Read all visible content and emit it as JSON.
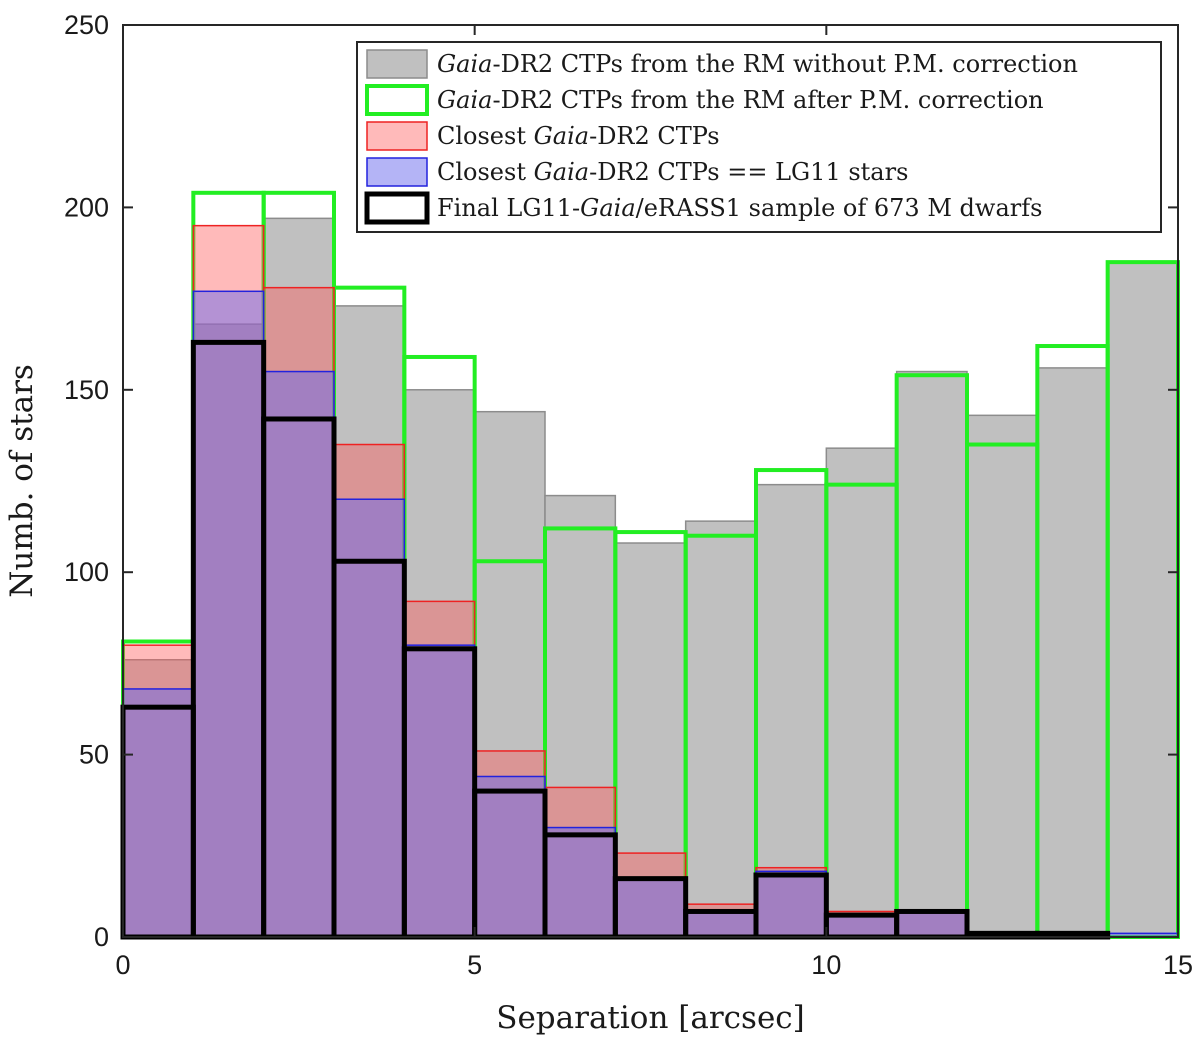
{
  "chart_data": {
    "type": "histogram",
    "title": "",
    "xlabel": "Separation [arcsec]",
    "ylabel": "Numb. of stars",
    "xlim": [
      0,
      15
    ],
    "ylim": [
      0,
      250
    ],
    "xticks": [
      0,
      5,
      10,
      15
    ],
    "yticks": [
      0,
      50,
      100,
      150,
      200,
      250
    ],
    "grid": false,
    "legend_position": "top-right",
    "bin_edges": [
      0,
      1,
      2,
      3,
      4,
      5,
      6,
      7,
      8,
      9,
      10,
      11,
      12,
      13,
      14,
      15
    ],
    "series": [
      {
        "id": "gray",
        "name": "Gaia-DR2 CTPs from the RM without P.M. correction",
        "style": "filled",
        "fill": "#bdbdbd",
        "fill_opacity": 0.95,
        "stroke": "#8c8c8c",
        "stroke_width": 1.5,
        "values": [
          76,
          168,
          197,
          173,
          150,
          144,
          121,
          108,
          114,
          124,
          134,
          155,
          143,
          156,
          185
        ]
      },
      {
        "id": "green",
        "name": "Gaia-DR2 CTPs from the RM after P.M. correction",
        "style": "outline",
        "stroke": "#22ee22",
        "stroke_width": 4,
        "values": [
          81,
          204,
          204,
          178,
          159,
          103,
          112,
          111,
          110,
          128,
          124,
          154,
          135,
          162,
          185
        ]
      },
      {
        "id": "red",
        "name": "Closest Gaia-DR2 CTPs",
        "style": "filled",
        "fill": "#ff5a5a",
        "fill_opacity": 0.42,
        "stroke": "#ee2222",
        "stroke_width": 1.5,
        "values": [
          80,
          195,
          178,
          135,
          92,
          51,
          41,
          23,
          9,
          19,
          7,
          7,
          1,
          1,
          0
        ]
      },
      {
        "id": "blue",
        "name": "Closest Gaia-DR2 CTPs == LG11 stars",
        "style": "filled",
        "fill": "#6a6aee",
        "fill_opacity": 0.5,
        "stroke": "#2222dd",
        "stroke_width": 1.5,
        "values": [
          68,
          177,
          155,
          120,
          80,
          44,
          30,
          16,
          7,
          18,
          6,
          7,
          1,
          1,
          1
        ]
      },
      {
        "id": "black",
        "name": "Final LG11-Gaia/eRASS1 sample of 673 M dwarfs",
        "style": "outline",
        "stroke": "#000000",
        "stroke_width": 5,
        "values": [
          63,
          163,
          142,
          103,
          79,
          40,
          28,
          16,
          7,
          17,
          6,
          7,
          1,
          1,
          0
        ]
      }
    ],
    "legend": [
      {
        "series": "gray",
        "pre": "",
        "italic": "Gaia",
        "post": "-DR2 CTPs from the RM without P.M. correction"
      },
      {
        "series": "green",
        "pre": "",
        "italic": "Gaia",
        "post": "-DR2 CTPs from the RM after P.M. correction"
      },
      {
        "series": "red",
        "pre": "Closest ",
        "italic": "Gaia",
        "post": "-DR2 CTPs"
      },
      {
        "series": "blue",
        "pre": "Closest ",
        "italic": "Gaia",
        "post": "-DR2 CTPs == LG11 stars"
      },
      {
        "series": "black",
        "pre": "Final LG11-",
        "italic": "Gaia",
        "post": "/eRASS1 sample of 673 M dwarfs"
      }
    ]
  }
}
